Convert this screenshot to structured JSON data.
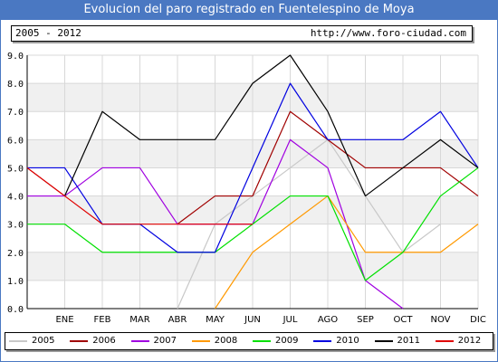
{
  "header": {
    "title": "Evolucion del paro registrado en Fuentelespino de Moya",
    "range": "2005 - 2012",
    "url": "http://www.foro-ciudad.com"
  },
  "colors": {
    "title_bg": "#4a78c2",
    "plot_band": "#f0f0f0"
  },
  "chart_data": {
    "type": "line",
    "title": "Evolucion del paro registrado en Fuentelespino de Moya",
    "categories": [
      "",
      "ENE",
      "FEB",
      "MAR",
      "ABR",
      "MAY",
      "JUN",
      "JUL",
      "AGO",
      "SEP",
      "OCT",
      "NOV",
      "DIC"
    ],
    "ylim": [
      0,
      9
    ],
    "yticks": [
      "0.0",
      "1.0",
      "2.0",
      "3.0",
      "4.0",
      "5.0",
      "6.0",
      "7.0",
      "8.0",
      "9.0"
    ],
    "grid": true,
    "legend_position": "bottom",
    "series": [
      {
        "name": "2005",
        "color": "#c8c8c8",
        "values": [
          null,
          null,
          null,
          null,
          0,
          3,
          4,
          5,
          6,
          4,
          2,
          3,
          null
        ]
      },
      {
        "name": "2006",
        "color": "#a00000",
        "values": [
          5,
          4,
          null,
          null,
          3,
          4,
          4,
          7,
          6,
          5,
          5,
          5,
          4
        ]
      },
      {
        "name": "2007",
        "color": "#a000e0",
        "values": [
          4,
          4,
          5,
          5,
          3,
          3,
          3,
          6,
          5,
          1,
          0,
          null,
          null
        ]
      },
      {
        "name": "2008",
        "color": "#ff9900",
        "values": [
          null,
          null,
          null,
          null,
          null,
          0,
          2,
          3,
          4,
          2,
          2,
          2,
          3
        ]
      },
      {
        "name": "2009",
        "color": "#00e000",
        "values": [
          3,
          3,
          2,
          2,
          2,
          2,
          3,
          4,
          4,
          1,
          2,
          4,
          5
        ]
      },
      {
        "name": "2010",
        "color": "#0000e0",
        "values": [
          5,
          5,
          3,
          3,
          2,
          2,
          5,
          8,
          6,
          6,
          6,
          7,
          5
        ]
      },
      {
        "name": "2011",
        "color": "#000000",
        "values": [
          null,
          4,
          7,
          6,
          6,
          6,
          8,
          9,
          7,
          4,
          5,
          6,
          5
        ]
      },
      {
        "name": "2012",
        "color": "#e00000",
        "values": [
          5,
          4,
          3,
          3,
          3,
          3,
          3,
          null,
          null,
          null,
          null,
          null,
          null
        ]
      }
    ]
  }
}
